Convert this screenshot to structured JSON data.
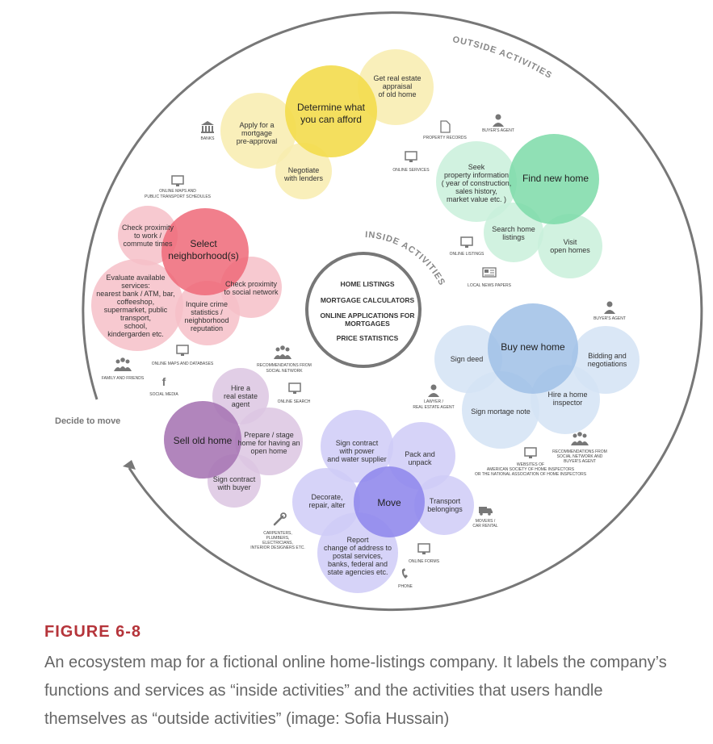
{
  "outside_label": "OUTSIDE ACTIVITIES",
  "inside_label": "INSIDE ACTIVITIES",
  "decide_label": "Decide to move",
  "inside_items": [
    "HOME LISTINGS",
    "MORTGAGE CALCULATORS",
    "ONLINE APPLICATIONS FOR",
    "MORTGAGES",
    "PRICE STATISTICS"
  ],
  "clusters": {
    "afford": {
      "main": [
        "Determine what",
        "you can afford"
      ],
      "b1": [
        "Get real estate",
        "appraisal",
        "of old home"
      ],
      "b2": [
        "Apply for a",
        "mortgage",
        "pre-approval"
      ],
      "b3": [
        "Negotiate",
        "with lenders"
      ]
    },
    "find": {
      "main": [
        "Find new home"
      ],
      "b1": [
        "Seek",
        "property information",
        "( year of construction,",
        "sales history,",
        "market value etc. )"
      ],
      "b2": [
        "Search home",
        "listings"
      ],
      "b3": [
        "Visit",
        "open homes"
      ]
    },
    "neighborhood": {
      "main": [
        "Select",
        "neighborhood(s)"
      ],
      "b1": [
        "Check proximity",
        "to work /",
        "commute times"
      ],
      "b2": [
        "Evaluate available",
        "services:",
        "nearest bank / ATM, bar,",
        "coffeeshop,",
        "supermarket, public",
        "transport,",
        "school,",
        "kindergarden etc."
      ],
      "b3": [
        "Check proximity",
        "to social network"
      ],
      "b4": [
        "Inquire crime",
        "statistics /",
        "neighborhood",
        "reputation"
      ]
    },
    "buy": {
      "main": [
        "Buy new home"
      ],
      "b1": [
        "Sign deed"
      ],
      "b2": [
        "Bidding and",
        "negotiations"
      ],
      "b3": [
        "Hire a home",
        "inspector"
      ],
      "b4": [
        "Sign mortage note"
      ]
    },
    "sell": {
      "main": [
        "Sell old home"
      ],
      "b1": [
        "Hire a",
        "real estate",
        "agent"
      ],
      "b2": [
        "Prepare / stage",
        "home for having an",
        "open home"
      ],
      "b3": [
        "Sign contract",
        "with buyer"
      ]
    },
    "move": {
      "main": [
        "Move"
      ],
      "b1": [
        "Sign contract",
        "with power",
        "and water supplier"
      ],
      "b2": [
        "Pack and",
        "unpack"
      ],
      "b3": [
        "Decorate,",
        "repair, alter"
      ],
      "b4": [
        "Transport",
        "belongings"
      ],
      "b5": [
        "Report",
        "change of address to",
        "postal services,",
        "banks, federal and",
        "state agencies etc."
      ]
    }
  },
  "channel_labels": {
    "banks": "BANKS",
    "property_records": "PROPERTY RECORDS",
    "buyers_agent_1": "BUYER'S AGENT",
    "online_services": "ONLINE SERVICES",
    "online_maps": [
      "ONLINE MAPS AND",
      "PUBLIC TRANSPORT SCHEDULES"
    ],
    "online_listings": "ONLINE LISTINGS",
    "local_news": "LOCAL NEWS PAPERS",
    "buyers_agent_2": "BUYER'S AGENT",
    "online_maps_db": "ONLINE MAPS AND DATABASES",
    "family": "FAMILY AND FRIENDS",
    "social_media": "SOCIAL MEDIA",
    "recommendations_social": [
      "RECOMMENDATIONS FROM",
      "SOCIAL NETWORK"
    ],
    "online_search": "ONLINE SEARCH",
    "lawyer": [
      "LAWYER /",
      "REAL ESTATE AGENT"
    ],
    "websites": [
      "WEBSITES OF",
      "AMERICAN SOCIETY OF HOME INSPECTORS",
      "OR THE NATIONAL ASSOCIATION OF HOME INSPECTORS"
    ],
    "recommendations_buyer": [
      "RECOMMENDATIONS FROM",
      "SOCIAL NETWORK AND",
      "BUYER'S AGENT"
    ],
    "movers": [
      "MOVERS /",
      "CAR RENTAL"
    ],
    "carpenters": [
      "CARPENTERS,",
      "PLUMBERS,",
      "ELECTRICIANS,",
      "INTERIOR DESIGNERS ETC."
    ],
    "online_forms": "ONLINE FORMS",
    "phone": "PHONE"
  },
  "colors": {
    "yellow_main": "#f3dc4d",
    "yellow_light": "#f8ecae",
    "green_main": "#7ddba8",
    "green_light": "#c9f0da",
    "red_main": "#ee6878",
    "red_light": "#f6c0c8",
    "blue_main": "#9fc0e6",
    "blue_light": "#d4e3f4",
    "purple_main": "#a878b5",
    "purple_light": "#dcc6e2",
    "violet_main": "#9189ec",
    "violet_light": "#cfcbf7",
    "caption_red": "#b5343a"
  },
  "caption": {
    "title": "FIGURE 6-8",
    "text": "An ecosystem map for a fictional online home-listings company. It labels the company’s functions and services as “inside activities” and the activities that users handle themselves as “outside activities” (image: Sofia Hussain)"
  }
}
